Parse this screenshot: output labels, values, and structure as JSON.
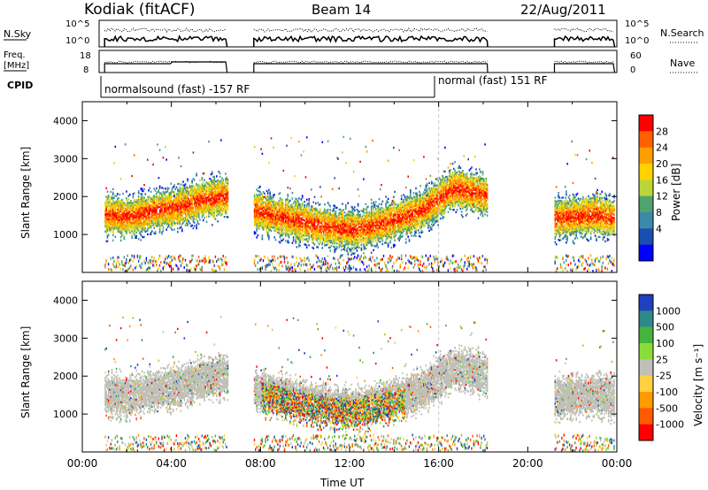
{
  "header": {
    "station": "Kodiak (fitACF)",
    "beam": "Beam 14",
    "date": "22/Aug/2011"
  },
  "top_panels": {
    "nsky_label": "N.Sky",
    "nsky_ticks": [
      "10^5",
      "10^0"
    ],
    "nsearch_label": "N.Search",
    "freq_label_1": "Freq.",
    "freq_label_2": "[MHz]",
    "freq_ticks": [
      "18",
      "8"
    ],
    "nave_label": "Nave",
    "nave_ticks": [
      "60",
      "0"
    ],
    "cpid_label": "CPID",
    "cpid_segments": [
      "normalsound (fast) -157 RF",
      "normal (fast) 151 RF"
    ]
  },
  "chart_data": [
    {
      "type": "heatmap",
      "title": "",
      "xlabel": "Time UT",
      "ylabel": "Slant Range [km]",
      "xlim_hours": [
        0,
        24
      ],
      "ylim_km": [
        0,
        4500
      ],
      "y_ticks": [
        "4000",
        "3000",
        "2000",
        "1000"
      ],
      "x_ticks": [
        "00:00",
        "04:00",
        "08:00",
        "12:00",
        "16:00",
        "20:00",
        "00:00"
      ],
      "colorbar_label": "Power [dB]",
      "colorbar_ticks": [
        "28",
        "24",
        "20",
        "16",
        "12",
        "8",
        "4"
      ],
      "colorbar_colors": [
        "#ff0000",
        "#ff6000",
        "#ff9e00",
        "#ffd200",
        "#b9d53a",
        "#4fa36f",
        "#3c8aa8",
        "#1a4fb0",
        "#0000ff"
      ],
      "data_segments": [
        {
          "start": 1.0,
          "end": 6.5,
          "echo_center_km": [
            1500,
            1450,
            1600,
            1700,
            1900,
            2000
          ]
        },
        {
          "start": 7.7,
          "end": 18.2,
          "echo_center_km": [
            1600,
            1400,
            1200,
            1100,
            1300,
            1600,
            2200,
            2000
          ]
        },
        {
          "start": 21.2,
          "end": 23.9,
          "echo_center_km": [
            1400,
            1450,
            1500,
            1400
          ]
        }
      ],
      "cpid_change_hour": 16.0
    },
    {
      "type": "heatmap",
      "title": "",
      "xlabel": "Time UT",
      "ylabel": "Slant Range [km]",
      "xlim_hours": [
        0,
        24
      ],
      "ylim_km": [
        0,
        4500
      ],
      "y_ticks": [
        "4000",
        "3000",
        "2000",
        "1000"
      ],
      "x_ticks": [
        "00:00",
        "04:00",
        "08:00",
        "12:00",
        "16:00",
        "20:00",
        "00:00"
      ],
      "colorbar_label": "Velocity [m s⁻¹]",
      "colorbar_ticks": [
        "1000",
        "500",
        "100",
        "25",
        "-25",
        "-100",
        "-500",
        "-1000"
      ],
      "colorbar_colors": [
        "#2040c0",
        "#2e8a8a",
        "#44b43c",
        "#8adc3a",
        "#c0c0b8",
        "#ffd040",
        "#ff9a00",
        "#ff5a00",
        "#ff0000"
      ],
      "data_segments": [
        {
          "start": 1.0,
          "end": 6.5,
          "echo_center_km": [
            1500,
            1450,
            1600,
            1700,
            1900,
            2000
          ]
        },
        {
          "start": 7.7,
          "end": 18.2,
          "echo_center_km": [
            1600,
            1400,
            1200,
            1100,
            1300,
            1600,
            2200,
            2000
          ]
        },
        {
          "start": 21.2,
          "end": 23.9,
          "echo_center_km": [
            1400,
            1450,
            1500,
            1400
          ]
        }
      ]
    }
  ]
}
